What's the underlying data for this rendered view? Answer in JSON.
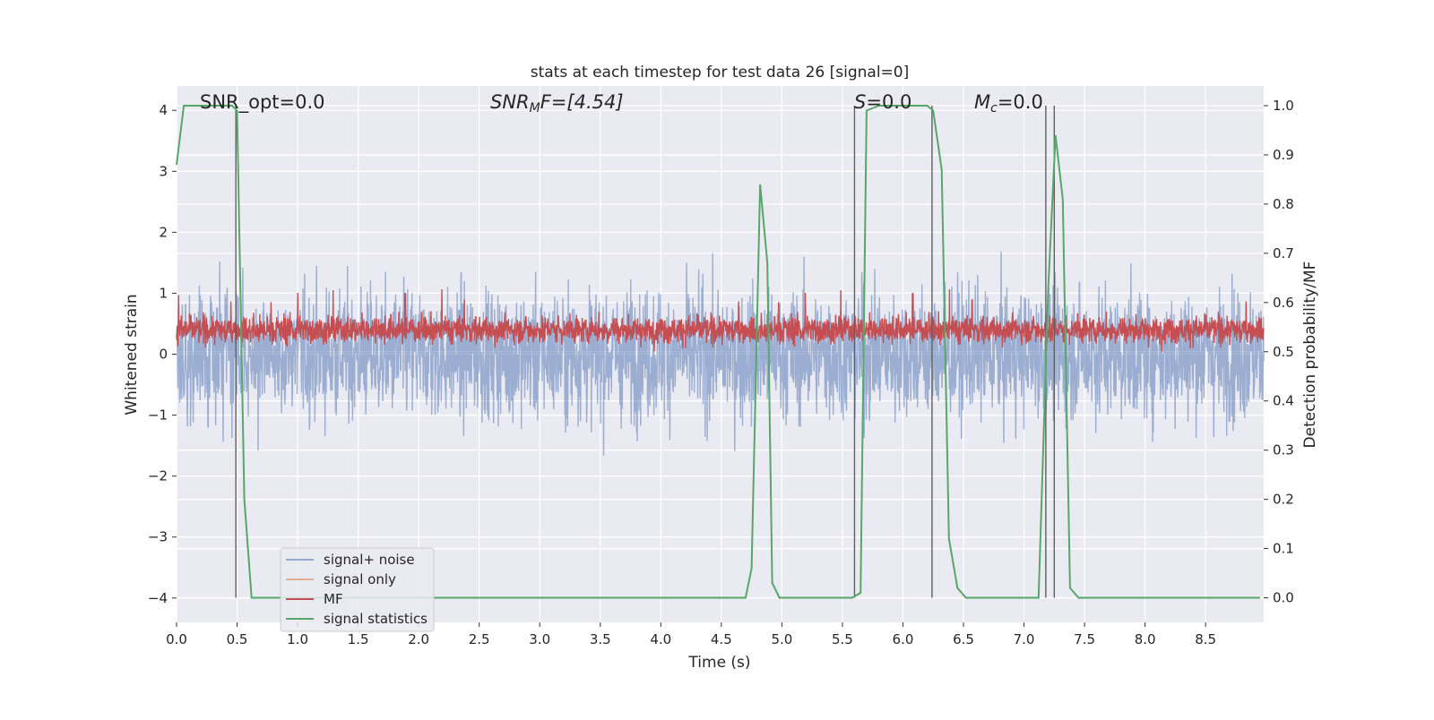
{
  "chart_data": {
    "type": "line",
    "title": "stats at each timestep for test data 26 [signal=0]",
    "xlabel": "Time (s)",
    "ylabel_left": "Whitened strain",
    "ylabel_right": "Detection probability/MF",
    "xlim": [
      0.0,
      8.98
    ],
    "ylim_left": [
      -4.4,
      4.4
    ],
    "ylim_right": [
      -0.05,
      1.04
    ],
    "xticks": [
      "0.0",
      "0.5",
      "1.0",
      "1.5",
      "2.0",
      "2.5",
      "3.0",
      "3.5",
      "4.0",
      "4.5",
      "5.0",
      "5.5",
      "6.0",
      "6.5",
      "7.0",
      "7.5",
      "8.0",
      "8.5"
    ],
    "yticks_left": [
      "4",
      "3",
      "2",
      "1",
      "0",
      "−1",
      "−2",
      "−3",
      "−4"
    ],
    "yticks_right": [
      "1.0",
      "0.9",
      "0.8",
      "0.7",
      "0.6",
      "0.5",
      "0.4",
      "0.3",
      "0.2",
      "0.1",
      "0.0"
    ],
    "grid": true,
    "background": "#eaeaf2",
    "annotations": {
      "snr_opt": "SNR_opt=0.0",
      "snr_mf_main": "SNR",
      "snr_mf_sub": "M",
      "snr_mf_rest": "F=[4.54]",
      "s_main": "S",
      "s_rest": "=0.0",
      "mc_main": "M",
      "mc_sub": "c",
      "mc_rest": "=0.0"
    },
    "legend": {
      "location": "lower left",
      "entries": [
        {
          "label": "signal+ noise",
          "color": "#4c72b0"
        },
        {
          "label": "signal only",
          "color": "#dd8452"
        },
        {
          "label": "MF",
          "color": "#c44e52"
        },
        {
          "label": "signal statistics",
          "color": "#55a868"
        }
      ]
    },
    "series": [
      {
        "name": "signal+ noise",
        "axis": "left",
        "color": "#4c72b0",
        "alpha": 0.5,
        "description": "whitened strain noise, amplitude roughly within ±4"
      },
      {
        "name": "MF",
        "axis": "right",
        "color": "#c44e52",
        "description": "matched filter output, values around 0.5–0.6"
      },
      {
        "name": "signal statistics",
        "axis": "right",
        "color": "#55a868",
        "x": [
          0.0,
          0.06,
          0.1,
          0.2,
          0.3,
          0.4,
          0.46,
          0.5,
          0.56,
          0.62,
          0.7,
          1.0,
          2.0,
          3.0,
          4.0,
          4.6,
          4.7,
          4.75,
          4.82,
          4.88,
          4.92,
          4.98,
          5.05,
          5.2,
          5.4,
          5.58,
          5.65,
          5.7,
          5.8,
          6.0,
          6.2,
          6.25,
          6.32,
          6.38,
          6.45,
          6.52,
          6.6,
          6.8,
          7.0,
          7.12,
          7.2,
          7.26,
          7.32,
          7.38,
          7.45,
          7.6,
          8.0,
          8.5,
          8.95
        ],
        "y": [
          0.88,
          1.0,
          1.0,
          1.0,
          1.0,
          1.0,
          1.0,
          0.99,
          0.2,
          0.0,
          0.0,
          0.0,
          0.0,
          0.0,
          0.0,
          0.0,
          0.0,
          0.06,
          0.84,
          0.68,
          0.03,
          0.0,
          0.0,
          0.0,
          0.0,
          0.0,
          0.01,
          0.99,
          1.0,
          1.0,
          1.0,
          0.99,
          0.87,
          0.12,
          0.02,
          0.0,
          0.0,
          0.0,
          0.0,
          0.0,
          0.63,
          0.94,
          0.81,
          0.02,
          0.0,
          0.0,
          0.0,
          0.0,
          0.0
        ]
      },
      {
        "name": "detection markers",
        "axis": "right",
        "color": "#606060",
        "x": [
          0.49,
          5.6,
          6.24,
          7.18,
          7.25
        ],
        "description": "vertical markers"
      }
    ]
  }
}
